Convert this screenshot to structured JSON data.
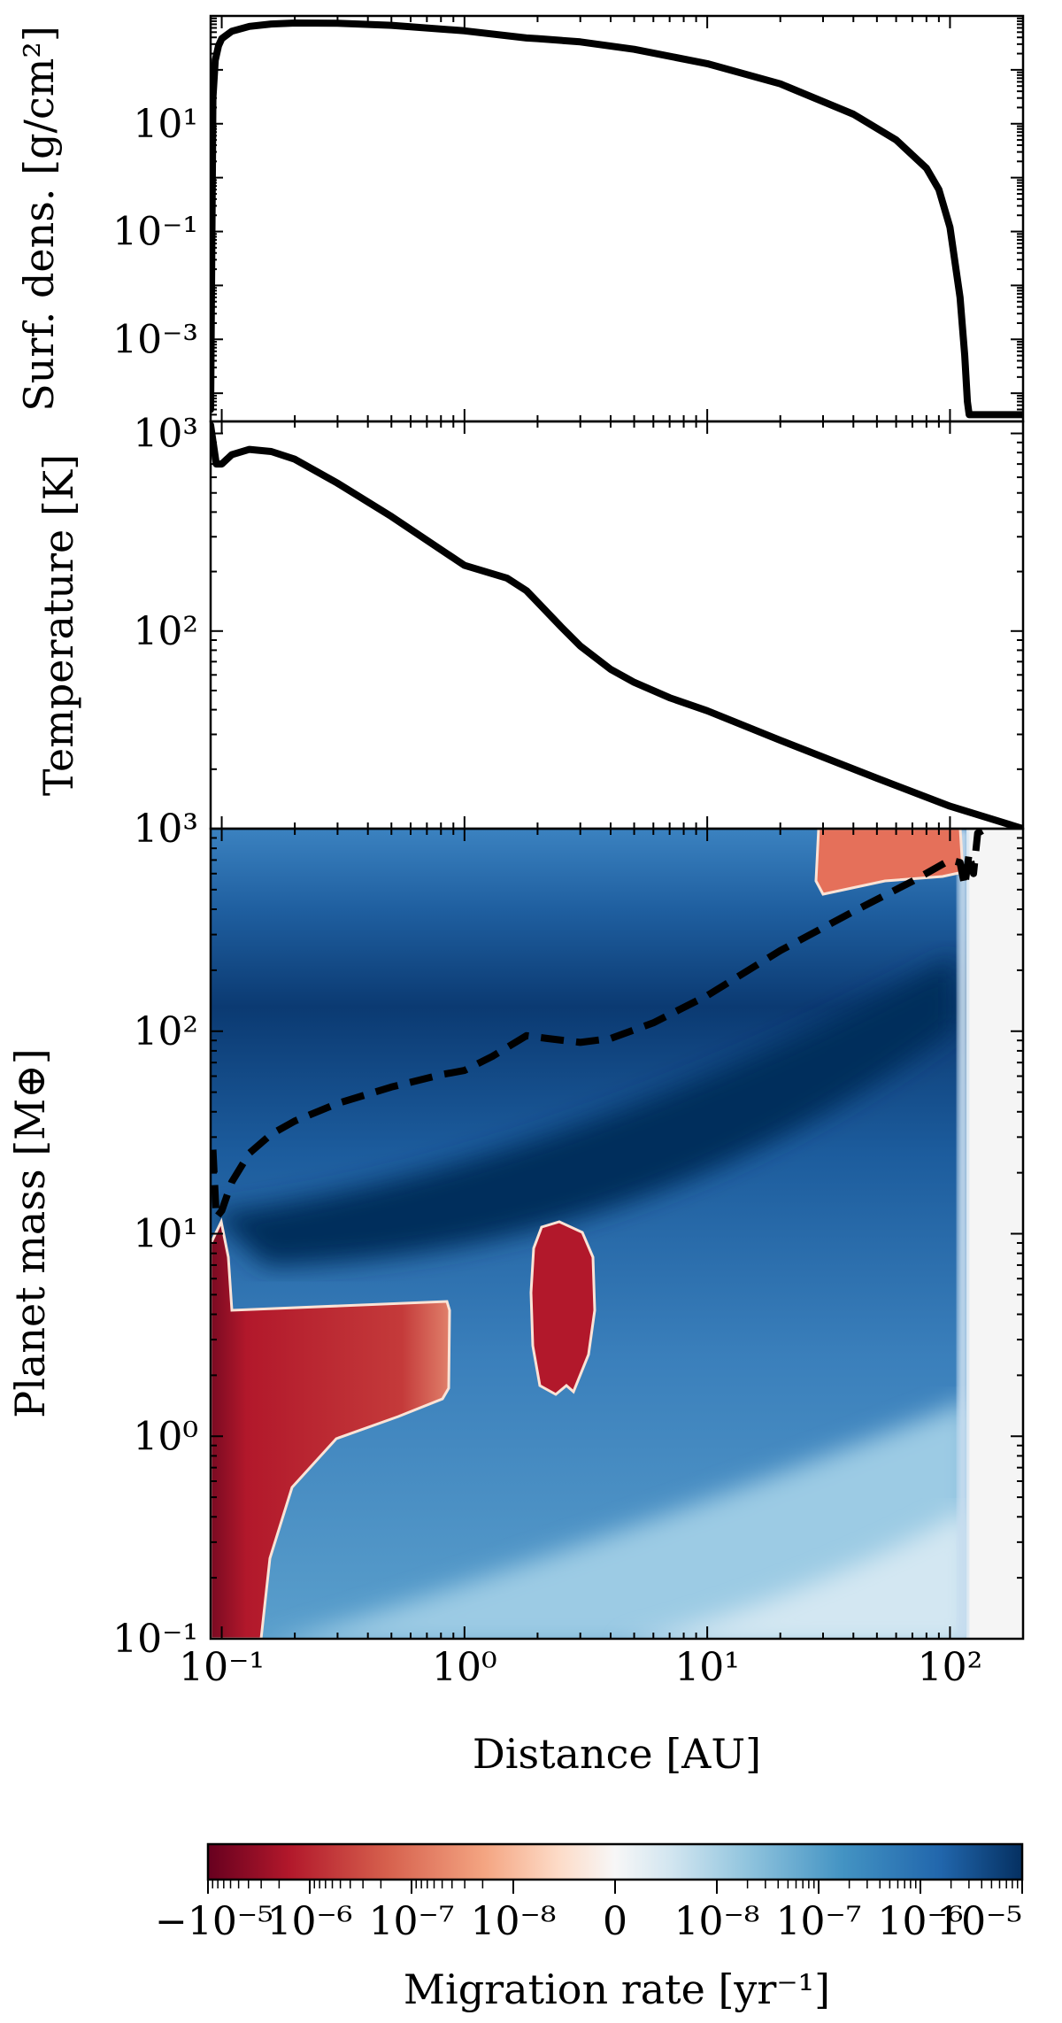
{
  "chart_data": [
    {
      "type": "line",
      "panel": "surface-density",
      "ylabel": "Surf. dens. [g/cm²]",
      "x_scale": "log",
      "y_scale": "log",
      "xlim": [
        0.09,
        200
      ],
      "ylim": [
        3e-05,
        1000
      ],
      "yticks": [
        {
          "value": 10,
          "label": "10¹"
        },
        {
          "value": 0.1,
          "label": "10⁻¹"
        },
        {
          "value": 0.001,
          "label": "10⁻³"
        }
      ],
      "series": [
        {
          "x": [
            0.09,
            0.092,
            0.094,
            0.097,
            0.1,
            0.11,
            0.13,
            0.16,
            0.2,
            0.3,
            0.5,
            1.0,
            1.8,
            2.0,
            3.0,
            5.0,
            10,
            20,
            40,
            60,
            80,
            90,
            100,
            110,
            115,
            118,
            120,
            125,
            200
          ],
          "y": [
            5e-05,
            30,
            150,
            280,
            380,
            520,
            640,
            710,
            740,
            730,
            670,
            530,
            390,
            380,
            330,
            240,
            130,
            55,
            15,
            5,
            1.5,
            0.6,
            0.12,
            0.006,
            0.0005,
            7e-05,
            4e-05,
            4e-05,
            4e-05
          ]
        }
      ]
    },
    {
      "type": "line",
      "panel": "temperature",
      "ylabel": "Temperature [K]",
      "x_scale": "log",
      "y_scale": "log",
      "xlim": [
        0.09,
        200
      ],
      "ylim": [
        10,
        1150
      ],
      "yticks": [
        {
          "value": 1000,
          "label": "10³"
        },
        {
          "value": 100,
          "label": "10²"
        }
      ],
      "series": [
        {
          "x": [
            0.09,
            0.095,
            0.1,
            0.11,
            0.13,
            0.16,
            0.2,
            0.3,
            0.5,
            1.0,
            1.5,
            1.8,
            2.0,
            2.5,
            3.0,
            4.0,
            5.0,
            7.0,
            10,
            20,
            50,
            100,
            200
          ],
          "y": [
            1100,
            700,
            700,
            780,
            830,
            810,
            740,
            560,
            380,
            215,
            185,
            160,
            140,
            105,
            84,
            64,
            55,
            46,
            39.5,
            28,
            18,
            13,
            10
          ]
        }
      ]
    },
    {
      "type": "heatmap",
      "panel": "migration-map",
      "xlabel": "Distance [AU]",
      "ylabel": "Planet mass [M⊕]",
      "x_scale": "log",
      "y_scale": "log",
      "xlim": [
        0.09,
        200
      ],
      "ylim": [
        0.1,
        1000
      ],
      "xticks": [
        {
          "value": 0.1,
          "label": "10⁻¹"
        },
        {
          "value": 1,
          "label": "10⁰"
        },
        {
          "value": 10,
          "label": "10¹"
        },
        {
          "value": 100,
          "label": "10²"
        }
      ],
      "yticks": [
        {
          "value": 1000,
          "label": "10³"
        },
        {
          "value": 100,
          "label": "10²"
        },
        {
          "value": 10,
          "label": "10¹"
        },
        {
          "value": 1,
          "label": "10⁰"
        },
        {
          "value": 0.1,
          "label": "10⁻¹"
        }
      ],
      "colorbar": {
        "label": "Migration rate [yr⁻¹]",
        "ticks": [
          "−10⁻⁵",
          "10⁻⁶",
          "10⁻⁷",
          "10⁻⁸",
          "0",
          "10⁻⁸",
          "10⁻⁷",
          "10⁻⁶",
          "10⁻⁵"
        ],
        "colors": [
          "#67001f",
          "#b2182b",
          "#d6604d",
          "#f4a582",
          "#fddbc7",
          "#f7f7f7",
          "#d1e5f0",
          "#92c5de",
          "#4393c3",
          "#2166ac",
          "#053061"
        ]
      },
      "regions": [
        {
          "sign": "outward",
          "description": "inner disk low-mass region",
          "x_range": [
            0.09,
            0.85
          ],
          "mass_range": [
            0.1,
            11
          ]
        },
        {
          "sign": "outward",
          "description": "island near 2-3 AU",
          "x_range": [
            2.1,
            3.6
          ],
          "mass_range": [
            1.6,
            11
          ]
        },
        {
          "sign": "outward",
          "description": "outer high-mass corner",
          "x_range": [
            30,
            110
          ],
          "mass_range": [
            550,
            1000
          ]
        },
        {
          "sign": "inward",
          "description": "rest of disk",
          "x_range": [
            0.09,
            120
          ],
          "mass_range": [
            0.1,
            1000
          ]
        },
        {
          "sign": "zero",
          "description": "beyond disk edge",
          "x_range": [
            120,
            200
          ],
          "mass_range": [
            0.1,
            1000
          ]
        }
      ],
      "series": [
        {
          "name": "gap-opening mass",
          "style": "dashed",
          "x": [
            0.092,
            0.095,
            0.1,
            0.11,
            0.13,
            0.16,
            0.2,
            0.3,
            0.5,
            0.8,
            1.0,
            1.3,
            1.8,
            2.2,
            3.0,
            4.0,
            6.0,
            10,
            20,
            40,
            70,
            100,
            110,
            115,
            120,
            125,
            130,
            140
          ],
          "y": [
            26,
            12,
            13,
            18,
            25,
            31,
            36,
            44,
            53,
            61,
            64,
            75,
            95,
            92,
            88,
            92,
            110,
            150,
            250,
            390,
            550,
            700,
            680,
            520,
            760,
            600,
            950,
            1000
          ]
        }
      ]
    }
  ]
}
